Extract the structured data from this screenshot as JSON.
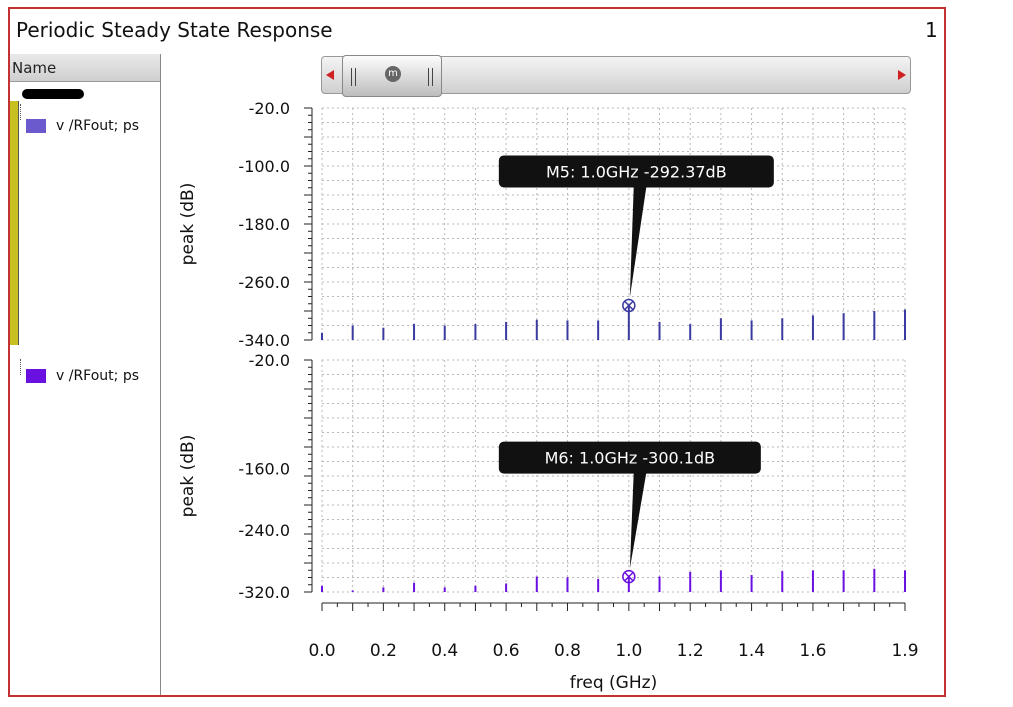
{
  "window": {
    "title": "Periodic Steady State Response",
    "page_number": "1"
  },
  "left_panel": {
    "header": "Name",
    "traces": [
      {
        "label": "v /RFout; ps",
        "color": "#6a5acd"
      },
      {
        "label": "v /RFout; ps",
        "color": "#6a10e0"
      }
    ]
  },
  "scrollbar": {
    "thumb_icon": "m"
  },
  "colors": {
    "frame": "#c23232",
    "trace_top": "#3a3aa0",
    "trace_bottom": "#6a10e0"
  },
  "chart_data": [
    {
      "type": "bar",
      "ylabel": "peak (dB)",
      "ylim": [
        -340,
        -20
      ],
      "yticks": [
        "-20.0",
        "-100.0",
        "-180.0",
        "-260.0",
        "-340.0"
      ],
      "x": [
        0.0,
        0.1,
        0.2,
        0.3,
        0.4,
        0.5,
        0.6,
        0.7,
        0.8,
        0.9,
        1.0,
        1.1,
        1.2,
        1.3,
        1.4,
        1.5,
        1.6,
        1.7,
        1.8,
        1.9
      ],
      "values": [
        -330,
        -320,
        -323,
        -318,
        -320,
        -318,
        -315,
        -312,
        -313,
        -313,
        -292.37,
        -315,
        -318,
        -310,
        -313,
        -310,
        -306,
        -303,
        -300,
        -298
      ],
      "marker": {
        "label": "M5: 1.0GHz -292.37dB",
        "x": 1.0,
        "y": -292.37
      }
    },
    {
      "type": "bar",
      "ylabel": "peak (dB)",
      "xlabel": "freq (GHz)",
      "ylim": [
        -320,
        -20
      ],
      "yticks": [
        "-20.0",
        "-160.0",
        "-240.0",
        "-320.0"
      ],
      "x": [
        0.0,
        0.1,
        0.2,
        0.3,
        0.4,
        0.5,
        0.6,
        0.7,
        0.8,
        0.9,
        1.0,
        1.1,
        1.2,
        1.3,
        1.4,
        1.5,
        1.6,
        1.7,
        1.8,
        1.9
      ],
      "values": [
        -312,
        -318,
        -314,
        -308,
        -314,
        -312,
        -309,
        -300,
        -301,
        -303,
        -300.1,
        -300,
        -294,
        -292,
        -298,
        -293,
        -292,
        -292,
        -290,
        -292
      ],
      "marker": {
        "label": "M6: 1.0GHz -300.1dB",
        "x": 1.0,
        "y": -300.1
      },
      "xticks": [
        "0.0",
        "0.2",
        "0.4",
        "0.6",
        "0.8",
        "1.0",
        "1.2",
        "1.4",
        "1.6",
        "1.9"
      ]
    }
  ]
}
